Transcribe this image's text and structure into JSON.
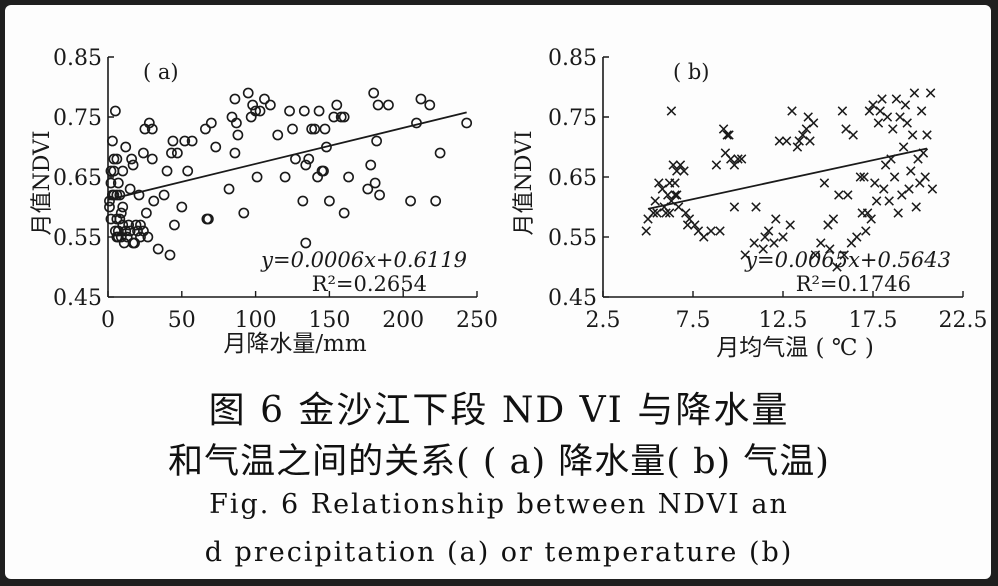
{
  "caption": {
    "cn_line1": "图 6   金沙江下段 ND VI 与降水量",
    "cn_line2": "和气温之间的关系( ( a) 降水量( b) 气温)",
    "en_line1": "Fig. 6    Relationship between NDVI an",
    "en_line2": "d precipitation (a) or temperature (b)"
  },
  "chart_data": [
    {
      "type": "scatter",
      "panel_label": "( a)",
      "title": "",
      "xlabel": "月降水量/mm",
      "ylabel": "月值NDVI",
      "xlim": [
        0,
        250
      ],
      "ylim": [
        0.45,
        0.85
      ],
      "xticks": [
        "0",
        "50",
        "100",
        "150",
        "200",
        "250"
      ],
      "yticks": [
        "0.45",
        "0.55",
        "0.65",
        "0.75",
        "0.85"
      ],
      "marker": "circle",
      "equation": "y=0.0006x+0.6119",
      "r2": "R²=0.2654",
      "trendline": {
        "slope": 0.0006,
        "intercept": 0.6119,
        "x_range": [
          0,
          243
        ]
      },
      "points": [
        [
          1,
          0.61
        ],
        [
          1,
          0.6
        ],
        [
          2,
          0.64
        ],
        [
          2,
          0.58
        ],
        [
          2,
          0.66
        ],
        [
          3,
          0.62
        ],
        [
          3,
          0.71
        ],
        [
          4,
          0.66
        ],
        [
          4,
          0.62
        ],
        [
          4,
          0.68
        ],
        [
          5,
          0.76
        ],
        [
          5,
          0.56
        ],
        [
          6,
          0.55
        ],
        [
          6,
          0.58
        ],
        [
          6,
          0.62
        ],
        [
          6,
          0.68
        ],
        [
          7,
          0.64
        ],
        [
          7,
          0.56
        ],
        [
          7,
          0.55
        ],
        [
          8,
          0.58
        ],
        [
          8,
          0.62
        ],
        [
          9,
          0.55
        ],
        [
          9,
          0.59
        ],
        [
          10,
          0.57
        ],
        [
          10,
          0.6
        ],
        [
          10,
          0.66
        ],
        [
          11,
          0.54
        ],
        [
          12,
          0.56
        ],
        [
          12,
          0.7
        ],
        [
          13,
          0.55
        ],
        [
          14,
          0.57
        ],
        [
          15,
          0.63
        ],
        [
          15,
          0.56
        ],
        [
          16,
          0.68
        ],
        [
          17,
          0.67
        ],
        [
          17,
          0.54
        ],
        [
          18,
          0.54
        ],
        [
          19,
          0.57
        ],
        [
          20,
          0.56
        ],
        [
          21,
          0.62
        ],
        [
          22,
          0.57
        ],
        [
          22,
          0.55
        ],
        [
          24,
          0.69
        ],
        [
          24,
          0.56
        ],
        [
          25,
          0.73
        ],
        [
          26,
          0.59
        ],
        [
          27,
          0.55
        ],
        [
          28,
          0.74
        ],
        [
          30,
          0.68
        ],
        [
          30,
          0.73
        ],
        [
          31,
          0.61
        ],
        [
          34,
          0.53
        ],
        [
          38,
          0.62
        ],
        [
          40,
          0.66
        ],
        [
          42,
          0.52
        ],
        [
          43,
          0.69
        ],
        [
          44,
          0.71
        ],
        [
          45,
          0.57
        ],
        [
          47,
          0.69
        ],
        [
          50,
          0.6
        ],
        [
          52,
          0.71
        ],
        [
          54,
          0.66
        ],
        [
          57,
          0.71
        ],
        [
          66,
          0.73
        ],
        [
          67,
          0.58
        ],
        [
          68,
          0.58
        ],
        [
          70,
          0.74
        ],
        [
          73,
          0.7
        ],
        [
          82,
          0.63
        ],
        [
          84,
          0.75
        ],
        [
          86,
          0.69
        ],
        [
          86,
          0.78
        ],
        [
          87,
          0.74
        ],
        [
          88,
          0.72
        ],
        [
          92,
          0.59
        ],
        [
          95,
          0.79
        ],
        [
          97,
          0.75
        ],
        [
          98,
          0.77
        ],
        [
          100,
          0.76
        ],
        [
          101,
          0.65
        ],
        [
          103,
          0.76
        ],
        [
          106,
          0.78
        ],
        [
          110,
          0.77
        ],
        [
          115,
          0.72
        ],
        [
          120,
          0.65
        ],
        [
          123,
          0.76
        ],
        [
          125,
          0.73
        ],
        [
          127,
          0.68
        ],
        [
          132,
          0.61
        ],
        [
          133,
          0.76
        ],
        [
          134,
          0.67
        ],
        [
          134,
          0.54
        ],
        [
          136,
          0.68
        ],
        [
          138,
          0.73
        ],
        [
          140,
          0.73
        ],
        [
          142,
          0.65
        ],
        [
          143,
          0.76
        ],
        [
          145,
          0.66
        ],
        [
          146,
          0.66
        ],
        [
          147,
          0.73
        ],
        [
          148,
          0.7
        ],
        [
          150,
          0.61
        ],
        [
          153,
          0.75
        ],
        [
          155,
          0.77
        ],
        [
          158,
          0.75
        ],
        [
          160,
          0.75
        ],
        [
          160,
          0.59
        ],
        [
          163,
          0.65
        ],
        [
          176,
          0.63
        ],
        [
          178,
          0.67
        ],
        [
          180,
          0.79
        ],
        [
          181,
          0.64
        ],
        [
          182,
          0.71
        ],
        [
          183,
          0.77
        ],
        [
          184,
          0.62
        ],
        [
          190,
          0.77
        ],
        [
          205,
          0.61
        ],
        [
          209,
          0.74
        ],
        [
          212,
          0.78
        ],
        [
          218,
          0.77
        ],
        [
          222,
          0.61
        ],
        [
          225,
          0.69
        ],
        [
          243,
          0.74
        ]
      ]
    },
    {
      "type": "scatter",
      "panel_label": "( b)",
      "title": "",
      "xlabel": "月均气温 ( ℃ )",
      "ylabel": "月值NDVI",
      "xlim": [
        2.5,
        22.5
      ],
      "ylim": [
        0.45,
        0.85
      ],
      "xticks": [
        "2.5",
        "7.5",
        "12.5",
        "17.5",
        "22.5"
      ],
      "yticks": [
        "0.45",
        "0.55",
        "0.65",
        "0.75",
        "0.85"
      ],
      "marker": "cross",
      "equation": "y=0.0065x+0.5643",
      "r2": "R²=0.1746",
      "trendline": {
        "slope": 0.0065,
        "intercept": 0.5643,
        "x_range": [
          5,
          20.5
        ]
      },
      "points": [
        [
          4.9,
          0.56
        ],
        [
          5,
          0.58
        ],
        [
          5.3,
          0.59
        ],
        [
          5.4,
          0.61
        ],
        [
          5.5,
          0.59
        ],
        [
          5.6,
          0.64
        ],
        [
          5.8,
          0.63
        ],
        [
          5.9,
          0.6
        ],
        [
          6,
          0.59
        ],
        [
          6.1,
          0.62
        ],
        [
          6.2,
          0.64
        ],
        [
          6.2,
          0.59
        ],
        [
          6.3,
          0.61
        ],
        [
          6.3,
          0.76
        ],
        [
          6.4,
          0.67
        ],
        [
          6.5,
          0.64
        ],
        [
          6.5,
          0.62
        ],
        [
          6.6,
          0.66
        ],
        [
          6.6,
          0.62
        ],
        [
          6.7,
          0.6
        ],
        [
          6.8,
          0.67
        ],
        [
          7,
          0.66
        ],
        [
          7.1,
          0.59
        ],
        [
          7.2,
          0.57
        ],
        [
          7.3,
          0.58
        ],
        [
          7.6,
          0.57
        ],
        [
          7.8,
          0.56
        ],
        [
          8.1,
          0.55
        ],
        [
          8.5,
          0.56
        ],
        [
          8.8,
          0.67
        ],
        [
          9,
          0.56
        ],
        [
          9.2,
          0.73
        ],
        [
          9.3,
          0.69
        ],
        [
          9.4,
          0.72
        ],
        [
          9.5,
          0.72
        ],
        [
          9.6,
          0.68
        ],
        [
          9.8,
          0.6
        ],
        [
          9.8,
          0.67
        ],
        [
          10,
          0.68
        ],
        [
          10.2,
          0.68
        ],
        [
          10.4,
          0.52
        ],
        [
          10.9,
          0.54
        ],
        [
          11,
          0.6
        ],
        [
          11.4,
          0.53
        ],
        [
          11.5,
          0.55
        ],
        [
          11.7,
          0.56
        ],
        [
          12,
          0.54
        ],
        [
          12.1,
          0.58
        ],
        [
          12.3,
          0.71
        ],
        [
          12.5,
          0.55
        ],
        [
          12.7,
          0.71
        ],
        [
          12.9,
          0.57
        ],
        [
          13,
          0.76
        ],
        [
          13.3,
          0.7
        ],
        [
          13.4,
          0.71
        ],
        [
          13.6,
          0.72
        ],
        [
          13.8,
          0.73
        ],
        [
          13.9,
          0.75
        ],
        [
          14,
          0.71
        ],
        [
          14.2,
          0.74
        ],
        [
          14.3,
          0.52
        ],
        [
          14.6,
          0.54
        ],
        [
          14.8,
          0.64
        ],
        [
          15,
          0.57
        ],
        [
          15.1,
          0.53
        ],
        [
          15.3,
          0.58
        ],
        [
          15.5,
          0.5
        ],
        [
          15.6,
          0.62
        ],
        [
          15.8,
          0.76
        ],
        [
          15.9,
          0.52
        ],
        [
          16,
          0.73
        ],
        [
          16.1,
          0.62
        ],
        [
          16.3,
          0.54
        ],
        [
          16.4,
          0.72
        ],
        [
          16.6,
          0.55
        ],
        [
          16.8,
          0.65
        ],
        [
          16.9,
          0.59
        ],
        [
          17,
          0.65
        ],
        [
          17.1,
          0.56
        ],
        [
          17.2,
          0.59
        ],
        [
          17.3,
          0.76
        ],
        [
          17.4,
          0.58
        ],
        [
          17.5,
          0.77
        ],
        [
          17.6,
          0.64
        ],
        [
          17.7,
          0.61
        ],
        [
          17.8,
          0.74
        ],
        [
          17.9,
          0.76
        ],
        [
          18,
          0.78
        ],
        [
          18.1,
          0.63
        ],
        [
          18.2,
          0.67
        ],
        [
          18.3,
          0.75
        ],
        [
          18.4,
          0.61
        ],
        [
          18.5,
          0.68
        ],
        [
          18.6,
          0.73
        ],
        [
          18.7,
          0.65
        ],
        [
          18.8,
          0.78
        ],
        [
          18.9,
          0.59
        ],
        [
          19,
          0.75
        ],
        [
          19.1,
          0.62
        ],
        [
          19.2,
          0.7
        ],
        [
          19.3,
          0.77
        ],
        [
          19.4,
          0.74
        ],
        [
          19.5,
          0.63
        ],
        [
          19.6,
          0.66
        ],
        [
          19.7,
          0.72
        ],
        [
          19.8,
          0.79
        ],
        [
          19.9,
          0.6
        ],
        [
          20,
          0.68
        ],
        [
          20.1,
          0.64
        ],
        [
          20.2,
          0.76
        ],
        [
          20.3,
          0.69
        ],
        [
          20.4,
          0.65
        ],
        [
          20.5,
          0.72
        ],
        [
          20.7,
          0.79
        ],
        [
          20.8,
          0.63
        ]
      ]
    }
  ]
}
